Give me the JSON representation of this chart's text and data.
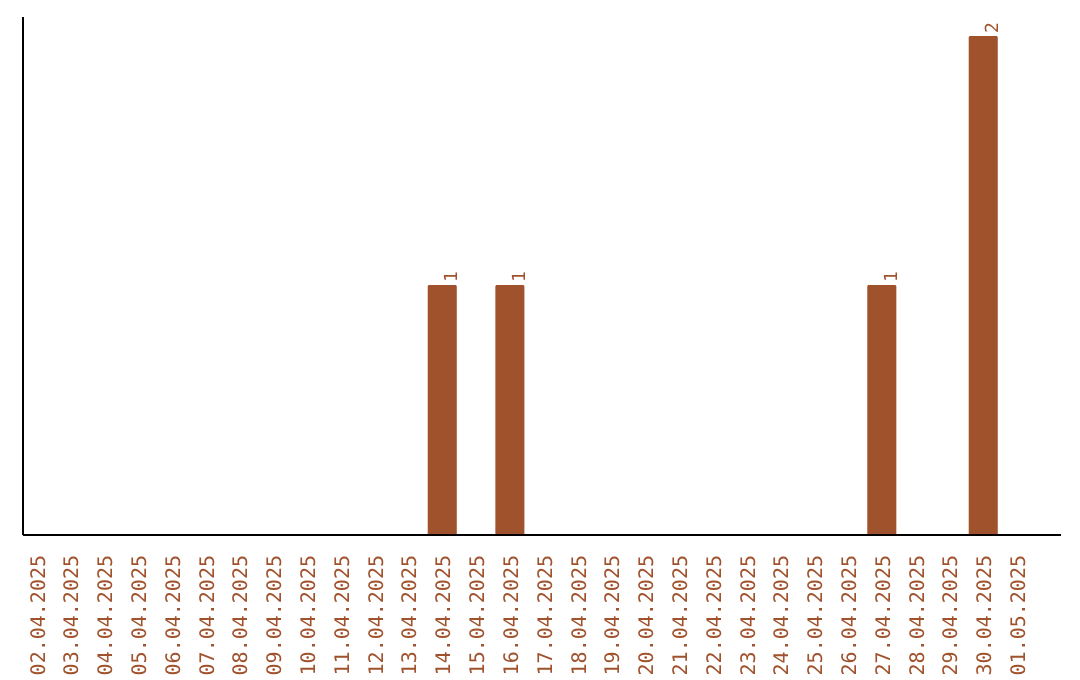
{
  "chart_data": {
    "type": "bar",
    "categories": [
      "02.04.2025",
      "03.04.2025",
      "04.04.2025",
      "05.04.2025",
      "06.04.2025",
      "07.04.2025",
      "08.04.2025",
      "09.04.2025",
      "10.04.2025",
      "11.04.2025",
      "12.04.2025",
      "13.04.2025",
      "14.04.2025",
      "15.04.2025",
      "16.04.2025",
      "17.04.2025",
      "18.04.2025",
      "19.04.2025",
      "20.04.2025",
      "21.04.2025",
      "22.04.2025",
      "23.04.2025",
      "24.04.2025",
      "25.04.2025",
      "26.04.2025",
      "27.04.2025",
      "28.04.2025",
      "29.04.2025",
      "30.04.2025",
      "01.05.2025"
    ],
    "values": [
      null,
      null,
      null,
      null,
      null,
      null,
      null,
      null,
      null,
      null,
      null,
      null,
      1,
      null,
      1,
      null,
      null,
      null,
      null,
      null,
      null,
      null,
      null,
      null,
      null,
      1,
      null,
      null,
      2,
      null
    ],
    "color": "#a0522d",
    "data_labels": true,
    "tick_labels": "x",
    "grid": false
  }
}
